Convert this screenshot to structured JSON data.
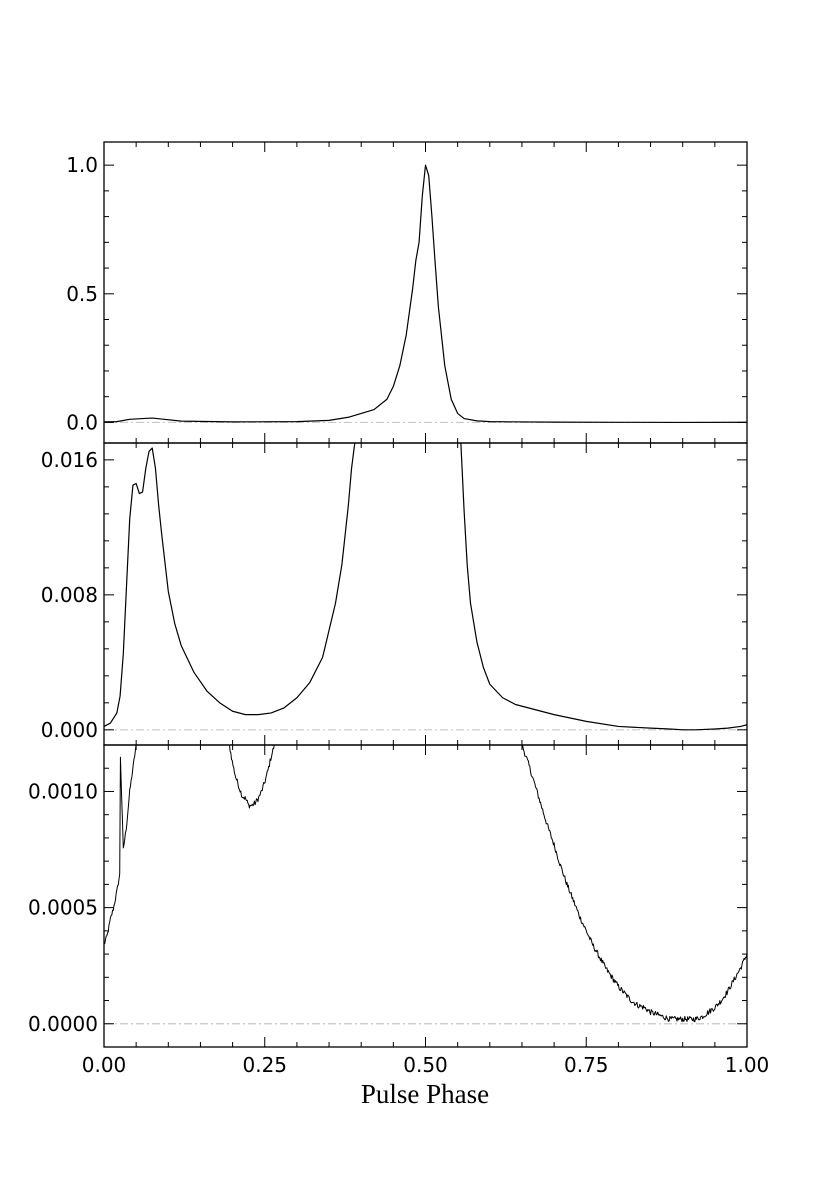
{
  "chart_data": [
    {
      "type": "line",
      "panel": "top",
      "xlim": [
        0.0,
        1.0
      ],
      "ylim": [
        -0.08,
        1.09
      ],
      "yticks": [
        "0.0",
        "0.5",
        "1.0"
      ],
      "ytick_values": [
        0.0,
        0.5,
        1.0
      ],
      "baseline": 0.0,
      "series": [
        {
          "x": [
            0.0,
            0.02,
            0.04,
            0.06,
            0.075,
            0.09,
            0.12,
            0.2,
            0.3,
            0.35,
            0.38,
            0.4,
            0.42,
            0.44,
            0.45,
            0.46,
            0.47,
            0.48,
            0.485,
            0.49,
            0.495,
            0.5,
            0.505,
            0.51,
            0.515,
            0.52,
            0.53,
            0.54,
            0.55,
            0.56,
            0.58,
            0.6,
            0.7,
            0.8,
            0.9,
            1.0
          ],
          "y": [
            0.002,
            0.003,
            0.012,
            0.015,
            0.017,
            0.013,
            0.005,
            0.002,
            0.003,
            0.008,
            0.02,
            0.035,
            0.05,
            0.09,
            0.14,
            0.22,
            0.34,
            0.52,
            0.63,
            0.7,
            0.88,
            1.0,
            0.96,
            0.8,
            0.62,
            0.45,
            0.22,
            0.09,
            0.035,
            0.015,
            0.006,
            0.003,
            0.001,
            0.0005,
            0.0,
            0.0006
          ]
        }
      ]
    },
    {
      "type": "line",
      "panel": "middle",
      "xlim": [
        0.0,
        1.0
      ],
      "ylim": [
        -0.0009,
        0.017
      ],
      "yticks": [
        "0.000",
        "0.008",
        "0.016"
      ],
      "ytick_values": [
        0.0,
        0.008,
        0.016
      ],
      "baseline": 0.0,
      "series": [
        {
          "x": [
            0.0,
            0.01,
            0.02,
            0.025,
            0.03,
            0.035,
            0.04,
            0.045,
            0.05,
            0.055,
            0.06,
            0.065,
            0.07,
            0.075,
            0.08,
            0.085,
            0.09,
            0.1,
            0.11,
            0.12,
            0.14,
            0.16,
            0.18,
            0.2,
            0.22,
            0.24,
            0.26,
            0.28,
            0.3,
            0.32,
            0.34,
            0.36,
            0.37,
            0.38,
            0.385,
            0.39
          ],
          "y": [
            0.0002,
            0.0004,
            0.001,
            0.002,
            0.0045,
            0.0085,
            0.0125,
            0.0145,
            0.0146,
            0.014,
            0.0141,
            0.0155,
            0.0165,
            0.0167,
            0.0155,
            0.0133,
            0.0115,
            0.0082,
            0.0063,
            0.005,
            0.0034,
            0.0023,
            0.0016,
            0.0011,
            0.0009,
            0.0009,
            0.001,
            0.0013,
            0.0019,
            0.0028,
            0.0043,
            0.0075,
            0.0098,
            0.0133,
            0.0155,
            0.017
          ]
        },
        {
          "x": [
            0.555,
            0.56,
            0.565,
            0.57,
            0.58,
            0.59,
            0.6,
            0.62,
            0.64,
            0.66,
            0.7,
            0.75,
            0.8,
            0.85,
            0.88,
            0.9,
            0.92,
            0.95,
            0.97,
            0.99,
            1.0
          ],
          "y": [
            0.017,
            0.013,
            0.0097,
            0.0075,
            0.0052,
            0.0037,
            0.0027,
            0.0019,
            0.0015,
            0.0013,
            0.0009,
            0.0005,
            0.0002,
            0.0001,
            5e-05,
            0.0,
            0.0,
            5e-05,
            0.0001,
            0.0002,
            0.0003
          ]
        }
      ]
    },
    {
      "type": "line",
      "panel": "bottom",
      "xlim": [
        0.0,
        1.0
      ],
      "ylim": [
        -0.0001,
        0.0012
      ],
      "yticks": [
        "0.0000",
        "0.0005",
        "0.0010"
      ],
      "ytick_values": [
        0.0,
        0.0005,
        0.001
      ],
      "baseline": 0.0,
      "xticks": [
        "0.00",
        "0.25",
        "0.50",
        "0.75",
        "1.00"
      ],
      "xtick_values": [
        0.0,
        0.25,
        0.5,
        0.75,
        1.0
      ],
      "xlabel": "Pulse Phase",
      "series": [
        {
          "x": [
            0.0,
            0.005,
            0.01,
            0.015,
            0.02,
            0.025,
            0.03,
            0.035,
            0.04,
            0.045,
            0.05,
            0.025
          ],
          "y": [
            0.00034,
            0.00038,
            0.00045,
            0.0005,
            0.00057,
            0.00065,
            0.00075,
            0.00085,
            0.001,
            0.0011,
            0.0012,
            0.0012
          ],
          "noise": 1e-05
        },
        {
          "x": [
            0.195,
            0.2,
            0.205,
            0.21,
            0.215,
            0.22,
            0.225,
            0.23,
            0.235,
            0.24,
            0.245,
            0.25,
            0.255,
            0.26,
            0.265
          ],
          "y": [
            0.0012,
            0.00112,
            0.00106,
            0.00102,
            0.00098,
            0.00097,
            0.00094,
            0.00094,
            0.00095,
            0.00097,
            0.001,
            0.00104,
            0.00109,
            0.00115,
            0.0012
          ],
          "noise": 1.2e-05
        },
        {
          "x": [
            0.65,
            0.66,
            0.67,
            0.68,
            0.69,
            0.7,
            0.71,
            0.72,
            0.73,
            0.74,
            0.75,
            0.76,
            0.77,
            0.78,
            0.79,
            0.8,
            0.81,
            0.82,
            0.83,
            0.84,
            0.85,
            0.86,
            0.87,
            0.88,
            0.89,
            0.9,
            0.91,
            0.92,
            0.93,
            0.94,
            0.95,
            0.96,
            0.97,
            0.98,
            0.99,
            1.0
          ],
          "y": [
            0.0012,
            0.00112,
            0.00103,
            0.00094,
            0.00085,
            0.00077,
            0.00068,
            0.0006,
            0.00053,
            0.00046,
            0.0004,
            0.00034,
            0.00029,
            0.00024,
            0.0002,
            0.00016,
            0.00013,
            0.0001,
            8e-05,
            7e-05,
            5e-05,
            4e-05,
            3e-05,
            2e-05,
            2e-05,
            2e-05,
            2e-05,
            2e-05,
            3e-05,
            5e-05,
            7e-05,
            0.0001,
            0.00014,
            0.00019,
            0.00024,
            0.0003
          ],
          "noise": 1.2e-05
        }
      ]
    }
  ]
}
